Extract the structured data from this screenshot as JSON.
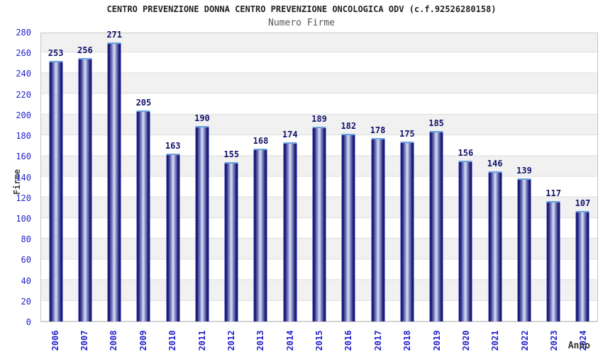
{
  "header": {
    "title": "CENTRO PREVENZIONE DONNA CENTRO PREVENZIONE ONCOLOGICA ODV (c.f.92526280158)",
    "subtitle": "Numero Firme"
  },
  "axes": {
    "ylabel": "Firme",
    "xlabel": "Anno"
  },
  "chart_data": {
    "type": "bar",
    "title": "CENTRO PREVENZIONE DONNA CENTRO PREVENZIONE ONCOLOGICA ODV (c.f.92526280158)",
    "subtitle": "Numero Firme",
    "xlabel": "Anno",
    "ylabel": "Firme",
    "categories": [
      "2006",
      "2007",
      "2008",
      "2009",
      "2010",
      "2011",
      "2012",
      "2013",
      "2014",
      "2015",
      "2016",
      "2017",
      "2018",
      "2019",
      "2020",
      "2021",
      "2022",
      "2023",
      "2024"
    ],
    "values": [
      253,
      256,
      271,
      205,
      163,
      190,
      155,
      168,
      174,
      189,
      182,
      178,
      175,
      185,
      156,
      146,
      139,
      117,
      107
    ],
    "ylim": [
      0,
      280
    ],
    "ytick_step": 20,
    "yticks": [
      0,
      20,
      40,
      60,
      80,
      100,
      120,
      140,
      160,
      180,
      200,
      220,
      240,
      260,
      280
    ],
    "grid": "alternating horizontal bands every 20 units, gridlines at band edges",
    "legend": "none",
    "value_labels": "above bars",
    "colors": {
      "bar_edge": "#10106a",
      "bar_center": "#dde1f4",
      "bar_top_cap": "#6aa2e0",
      "tick_label": "#2323cc",
      "value_label": "#12126b",
      "title": "#222222",
      "subtitle": "#555555",
      "band_gray": "#f1f1f2",
      "band_white": "#ffffff"
    }
  }
}
